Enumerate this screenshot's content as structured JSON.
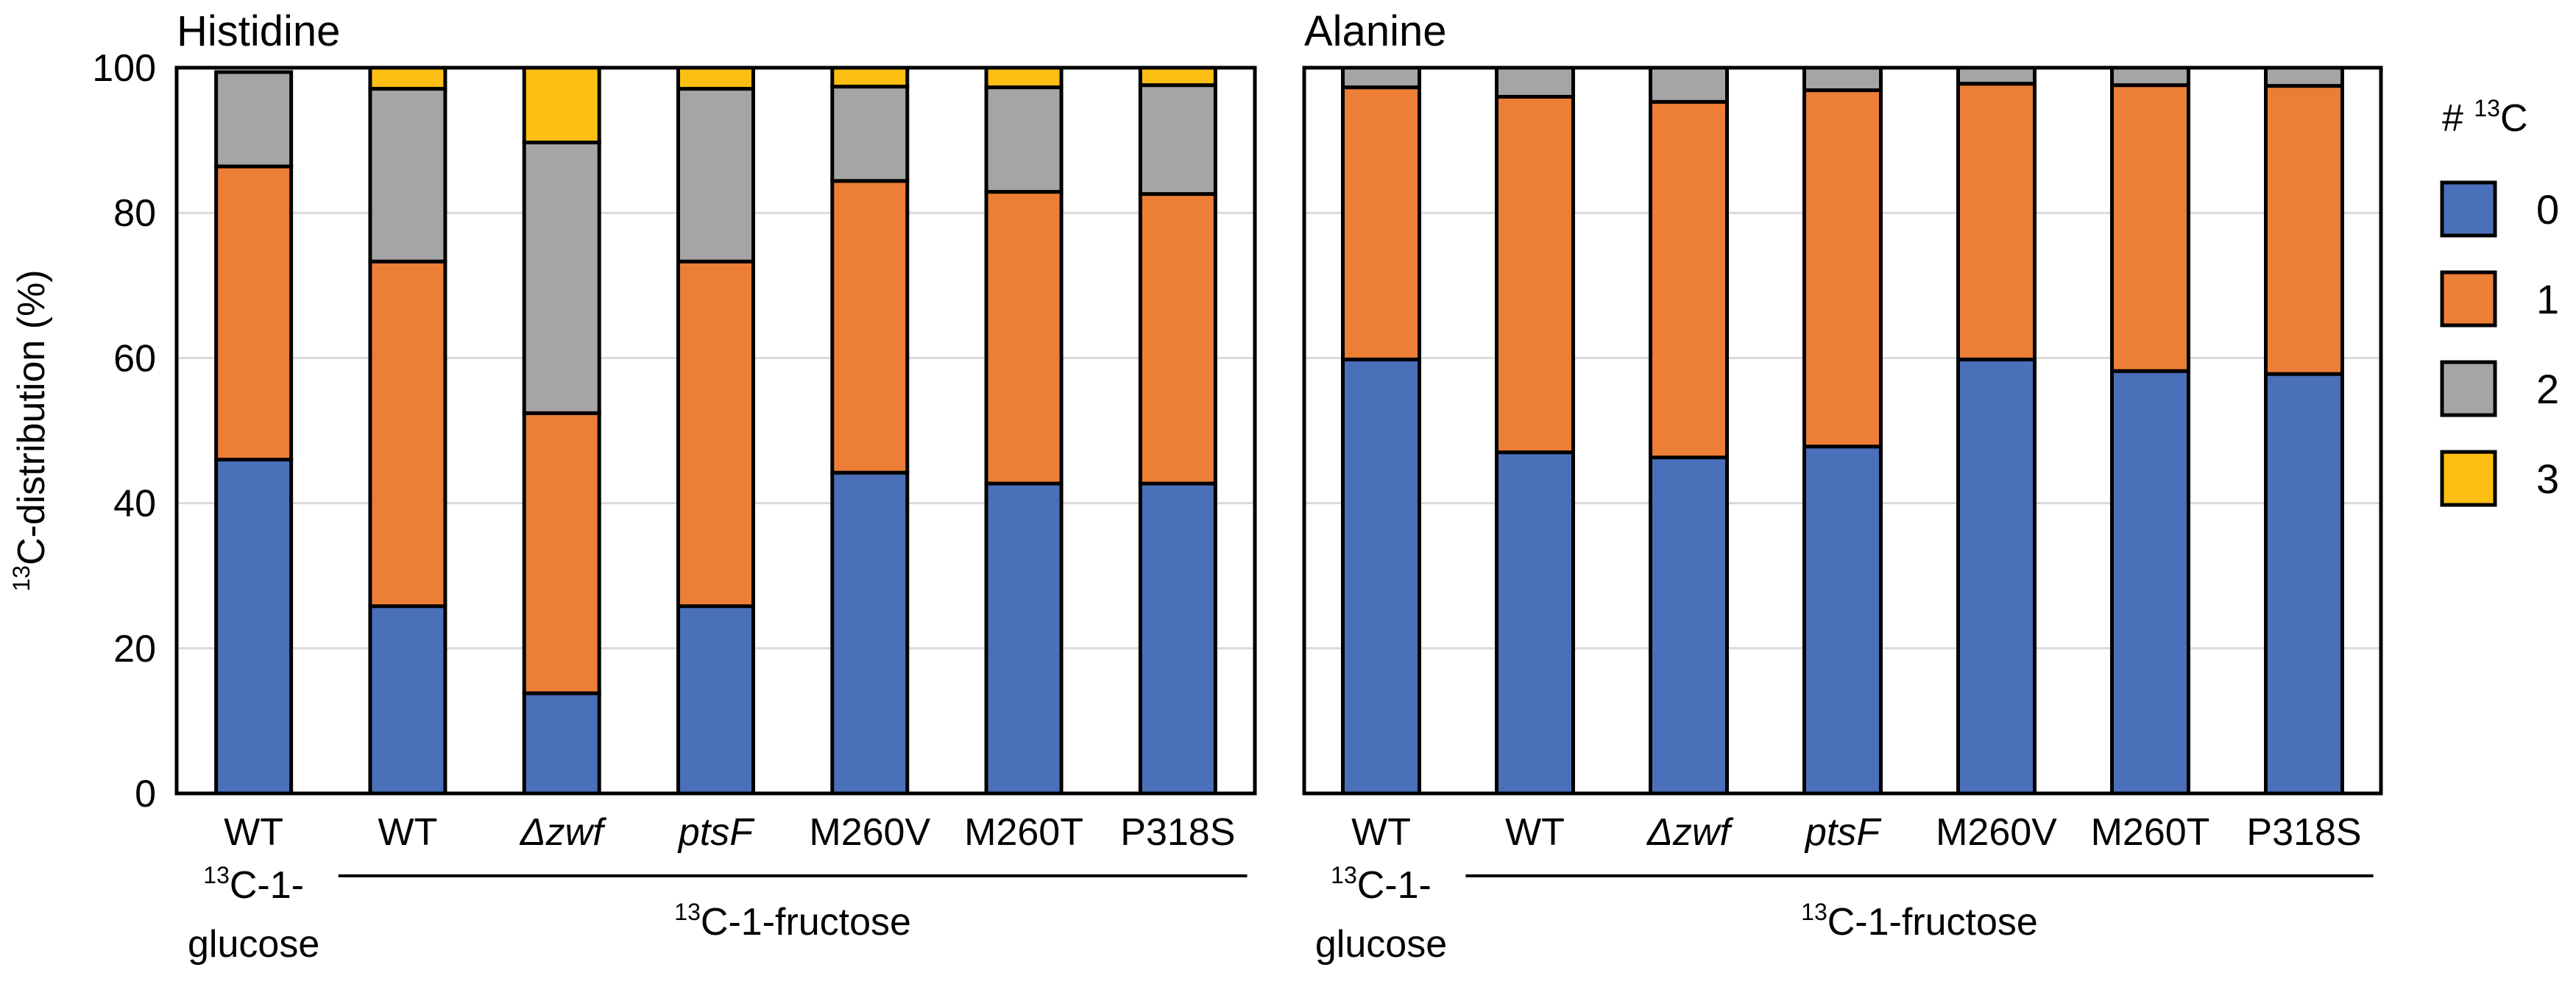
{
  "ylabel_sup": "13",
  "ylabel_rest": "C-distribution (%)",
  "yticks": [
    "0",
    "20",
    "40",
    "60",
    "80",
    "100"
  ],
  "ylim": [
    0,
    100
  ],
  "legend": {
    "title_prefix": "# ",
    "title_sup": "13",
    "title_suffix": "C",
    "items": [
      {
        "label": "0",
        "color": "#4a70b9"
      },
      {
        "label": "1",
        "color": "#ec7e35"
      },
      {
        "label": "2",
        "color": "#a5a5a5"
      },
      {
        "label": "3",
        "color": "#fdbf13"
      }
    ]
  },
  "group_labels": {
    "glucose_sup": "13",
    "glucose_line1": "C-1-",
    "glucose_line2": "glucose",
    "fructose_sup": "13",
    "fructose_label": "C-1-fructose"
  },
  "chart_data": [
    {
      "type": "bar",
      "stacked": true,
      "title": "Histidine",
      "categories": [
        "WT",
        "WT",
        "Δzwf",
        "ptsF",
        "M260V",
        "M260T",
        "P318S"
      ],
      "category_italic": [
        false,
        false,
        true,
        true,
        false,
        false,
        false
      ],
      "ylim": [
        0,
        100
      ],
      "series": [
        {
          "name": "0",
          "values": [
            46,
            25.8,
            13.8,
            25.8,
            44.2,
            42.7,
            42.7
          ]
        },
        {
          "name": "1",
          "values": [
            40.4,
            47.5,
            38.6,
            47.5,
            40.2,
            40.2,
            39.9
          ]
        },
        {
          "name": "2",
          "values": [
            13,
            23.8,
            37.3,
            23.8,
            13,
            14.4,
            15
          ]
        },
        {
          "name": "3",
          "values": [
            0,
            2.9,
            10.3,
            2.9,
            2.6,
            2.7,
            2.4
          ]
        }
      ]
    },
    {
      "type": "bar",
      "stacked": true,
      "title": "Alanine",
      "categories": [
        "WT",
        "WT",
        "Δzwf",
        "ptsF",
        "M260V",
        "M260T",
        "P318S"
      ],
      "category_italic": [
        false,
        false,
        true,
        true,
        false,
        false,
        false
      ],
      "ylim": [
        0,
        100
      ],
      "series": [
        {
          "name": "0",
          "values": [
            59.8,
            47,
            46.3,
            47.8,
            59.8,
            58.2,
            57.8
          ]
        },
        {
          "name": "1",
          "values": [
            37.5,
            49,
            49,
            49.1,
            38,
            39.4,
            39.7
          ]
        },
        {
          "name": "2",
          "values": [
            2.7,
            4,
            4.7,
            3.1,
            2.2,
            2.4,
            2.5
          ]
        },
        {
          "name": "3",
          "values": [
            0,
            0,
            0,
            0,
            0,
            0,
            0
          ]
        }
      ]
    }
  ]
}
